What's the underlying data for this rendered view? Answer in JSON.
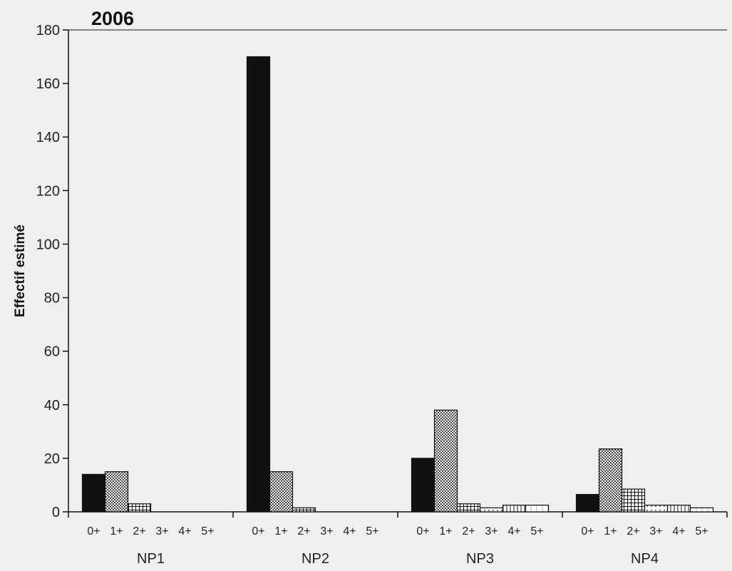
{
  "chart_data": {
    "type": "bar",
    "title": "2006",
    "xlabel": "",
    "ylabel": "Effectif estimé",
    "ylim": [
      0,
      180
    ],
    "yticks": [
      0,
      20,
      40,
      60,
      80,
      100,
      120,
      140,
      160,
      180
    ],
    "grid": false,
    "legend": "none",
    "groups": [
      "NP1",
      "NP2",
      "NP3",
      "NP4"
    ],
    "age_classes": [
      "0+",
      "1+",
      "2+",
      "3+",
      "4+",
      "5+"
    ],
    "series": [
      {
        "name": "0+",
        "pattern": "solid",
        "values": [
          14,
          170,
          20,
          6.5
        ]
      },
      {
        "name": "1+",
        "pattern": "dense-dots",
        "values": [
          15,
          15,
          38,
          23.5
        ]
      },
      {
        "name": "2+",
        "pattern": "small-grid",
        "values": [
          3,
          1.5,
          3,
          8.5
        ]
      },
      {
        "name": "3+",
        "pattern": "sparse-dots",
        "values": [
          0,
          0,
          1.5,
          2.5
        ]
      },
      {
        "name": "4+",
        "pattern": "vert-lines",
        "values": [
          0,
          0,
          2.5,
          2.5
        ]
      },
      {
        "name": "5+",
        "pattern": "light-lines",
        "values": [
          0,
          0,
          2.5,
          1.5
        ]
      }
    ],
    "colors": {
      "background": "#efefef",
      "ink": "#111111",
      "solid": "#111111"
    }
  }
}
